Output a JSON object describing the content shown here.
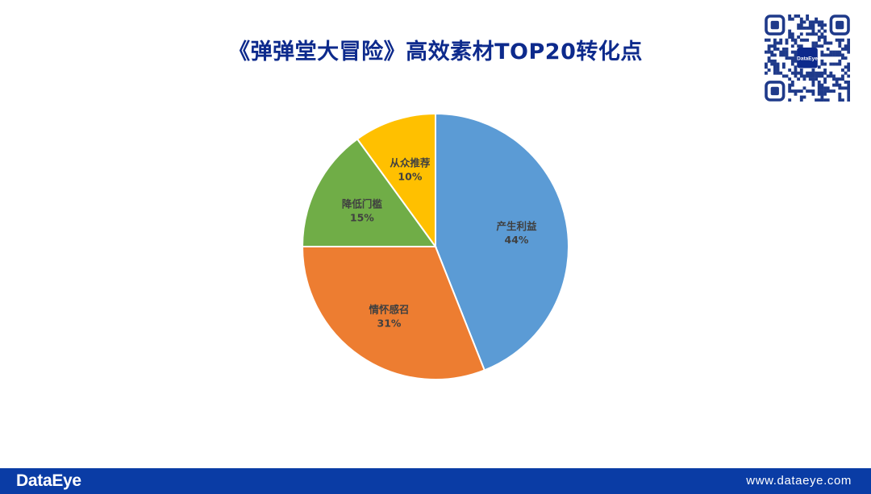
{
  "title": "《弹弹堂大冒险》高效素材TOP20转化点",
  "qr_logo_text": "DataEye",
  "footer": {
    "brand": "DataEye",
    "url": "www.dataeye.com",
    "background": "#0a3ca5"
  },
  "chart_data": {
    "type": "pie",
    "title": "《弹弹堂大冒险》高效素材TOP20转化点",
    "slices": [
      {
        "label": "产生利益",
        "value": 44,
        "display": "44%",
        "color": "#5b9bd5"
      },
      {
        "label": "情怀感召",
        "value": 31,
        "display": "31%",
        "color": "#ed7d31"
      },
      {
        "label": "降低门槛",
        "value": 15,
        "display": "15%",
        "color": "#70ad47"
      },
      {
        "label": "从众推荐",
        "value": 10,
        "display": "10%",
        "color": "#ffc000"
      }
    ],
    "start_angle": "12 o'clock",
    "direction": "clockwise",
    "legend": "none"
  }
}
